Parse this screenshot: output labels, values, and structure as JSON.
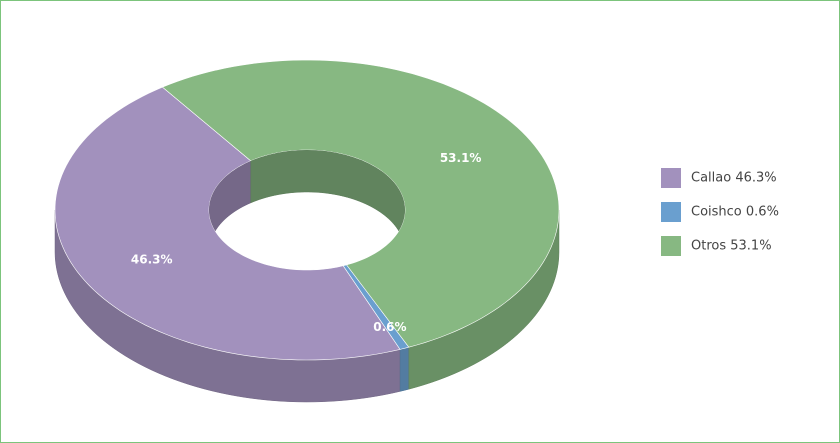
{
  "chart_data": {
    "type": "donut",
    "categories": [
      "Callao 46.3%",
      "Coishco 0.6%",
      "Otros 53.1%"
    ],
    "values": [
      46.3,
      0.6,
      53.1
    ],
    "value_labels": [
      "46.3%",
      "0.6%",
      "53.1%"
    ],
    "colors": [
      "#a291bd",
      "#6a9fcf",
      "#87b882"
    ],
    "legend": "right"
  }
}
